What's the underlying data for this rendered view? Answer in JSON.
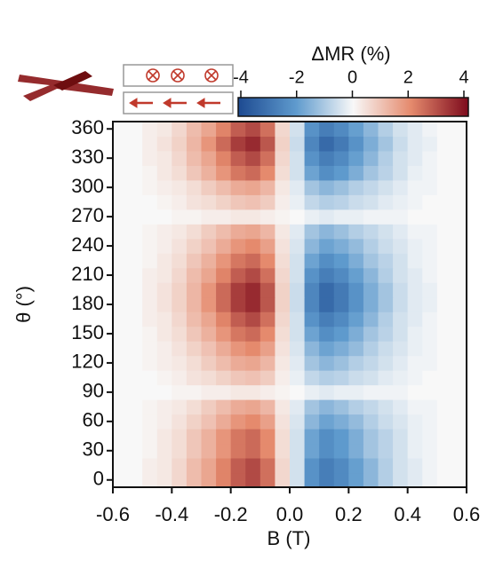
{
  "chart_data": {
    "type": "heatmap",
    "xlabel": "B (T)",
    "ylabel": "θ (°)",
    "x": [
      -0.575,
      -0.525,
      -0.475,
      -0.425,
      -0.375,
      -0.325,
      -0.275,
      -0.225,
      -0.175,
      -0.125,
      -0.075,
      -0.025,
      0.025,
      0.075,
      0.125,
      0.175,
      0.225,
      0.275,
      0.325,
      0.375,
      0.425,
      0.475,
      0.525,
      0.575
    ],
    "y": [
      0,
      15,
      30,
      45,
      60,
      75,
      90,
      105,
      120,
      135,
      150,
      165,
      180,
      195,
      210,
      225,
      240,
      255,
      270,
      285,
      300,
      315,
      330,
      345,
      360
    ],
    "z": [
      [
        0,
        0,
        0.2,
        0.3,
        0.6,
        1.1,
        1.5,
        2.1,
        2.7,
        3,
        2.4,
        0.6,
        -0.5,
        -2.2,
        -2.7,
        -2.4,
        -1.9,
        -1.4,
        -0.9,
        -0.5,
        -0.3,
        -0.1,
        0,
        0
      ],
      [
        0,
        0,
        0.2,
        0.3,
        0.6,
        1.1,
        1.5,
        2.1,
        2.7,
        3,
        2.4,
        0.6,
        -0.5,
        -2.2,
        -2.7,
        -2.4,
        -1.9,
        -1.4,
        -0.9,
        -0.5,
        -0.3,
        -0.1,
        0,
        0
      ],
      [
        0,
        0,
        0.1,
        0.3,
        0.5,
        0.9,
        1.3,
        1.8,
        2.3,
        2.5,
        2,
        0.5,
        -0.5,
        -1.8,
        -2.3,
        -2,
        -1.6,
        -1.1,
        -0.8,
        -0.5,
        -0.2,
        -0.1,
        0,
        0
      ],
      [
        0,
        0,
        0.1,
        0.3,
        0.5,
        0.9,
        1.3,
        1.8,
        2.3,
        2.5,
        2,
        0.5,
        -0.5,
        -1.8,
        -2.3,
        -2,
        -1.6,
        -1.1,
        -0.8,
        -0.5,
        -0.2,
        -0.1,
        0,
        0
      ],
      [
        0,
        0,
        0.1,
        0.2,
        0.4,
        0.7,
        1,
        1.4,
        1.8,
        2,
        1.6,
        0.4,
        -0.4,
        -1.4,
        -1.8,
        -1.6,
        -1.3,
        -0.9,
        -0.6,
        -0.4,
        -0.2,
        -0.1,
        0,
        0
      ],
      [
        0,
        0,
        0.1,
        0.2,
        0.3,
        0.5,
        0.8,
        1.1,
        1.4,
        1.5,
        1.2,
        0.3,
        -0.3,
        -1.1,
        -1.4,
        -1.2,
        -0.9,
        -0.7,
        -0.5,
        -0.3,
        -0.1,
        -0.1,
        0,
        0
      ],
      [
        0,
        0,
        0,
        0,
        0.1,
        0.1,
        0.2,
        0.2,
        0.3,
        0.3,
        0.2,
        0.1,
        0,
        -0.2,
        -0.3,
        -0.2,
        -0.2,
        -0.1,
        -0.1,
        -0.1,
        0,
        0,
        0,
        0
      ],
      [
        0,
        0,
        0,
        0.1,
        0.2,
        0.4,
        0.5,
        0.7,
        0.9,
        1,
        0.8,
        0.2,
        -0.2,
        -0.7,
        -0.9,
        -0.8,
        -0.6,
        -0.5,
        -0.3,
        -0.2,
        -0.1,
        0,
        0,
        0
      ],
      [
        0,
        0,
        0.1,
        0.2,
        0.3,
        0.5,
        0.8,
        1.1,
        1.4,
        1.5,
        1.2,
        0.3,
        -0.3,
        -1.1,
        -1.4,
        -1.2,
        -0.9,
        -0.7,
        -0.5,
        -0.3,
        -0.1,
        -0.1,
        0,
        0
      ],
      [
        0,
        0,
        0.1,
        0.2,
        0.4,
        0.7,
        1,
        1.4,
        1.8,
        2,
        1.6,
        0.4,
        -0.4,
        -1.4,
        -1.8,
        -1.6,
        -1.3,
        -0.9,
        -0.6,
        -0.4,
        -0.2,
        -0.1,
        0,
        0
      ],
      [
        0,
        0,
        0.1,
        0.3,
        0.5,
        0.9,
        1.3,
        1.8,
        2.3,
        2.5,
        2,
        0.5,
        -0.5,
        -1.8,
        -2.3,
        -2,
        -1.6,
        -1.1,
        -0.8,
        -0.5,
        -0.2,
        -0.1,
        0,
        0
      ],
      [
        0,
        0,
        0.2,
        0.3,
        0.6,
        1.1,
        1.5,
        2.1,
        2.7,
        3,
        2.4,
        0.6,
        -0.5,
        -2.2,
        -2.7,
        -2.4,
        -1.9,
        -1.4,
        -0.9,
        -0.5,
        -0.3,
        -0.1,
        0,
        0
      ],
      [
        0,
        0,
        0.2,
        0.4,
        0.7,
        1.2,
        1.8,
        2.5,
        3.2,
        3.5,
        2.8,
        0.7,
        -0.6,
        -2.5,
        -3.2,
        -2.8,
        -2.2,
        -1.6,
        -1.1,
        -0.6,
        -0.3,
        -0.2,
        0,
        0
      ],
      [
        0,
        0,
        0.2,
        0.4,
        0.7,
        1.2,
        1.8,
        2.5,
        3.2,
        3.5,
        2.8,
        0.7,
        -0.6,
        -2.5,
        -3.2,
        -2.8,
        -2.2,
        -1.6,
        -1.1,
        -0.6,
        -0.3,
        -0.2,
        0,
        0
      ],
      [
        0,
        0,
        0.2,
        0.3,
        0.6,
        1.1,
        1.5,
        2.1,
        2.7,
        3,
        2.4,
        0.6,
        -0.5,
        -2.2,
        -2.7,
        -2.4,
        -1.9,
        -1.4,
        -0.9,
        -0.5,
        -0.3,
        -0.1,
        0,
        0
      ],
      [
        0,
        0,
        0.1,
        0.3,
        0.5,
        0.9,
        1.3,
        1.8,
        2.3,
        2.5,
        2,
        0.5,
        -0.5,
        -1.8,
        -2.3,
        -2,
        -1.6,
        -1.1,
        -0.8,
        -0.5,
        -0.2,
        -0.1,
        0,
        0
      ],
      [
        0,
        0,
        0.1,
        0.2,
        0.4,
        0.7,
        1,
        1.4,
        1.8,
        2,
        1.6,
        0.4,
        -0.4,
        -1.4,
        -1.8,
        -1.6,
        -1.3,
        -0.9,
        -0.6,
        -0.4,
        -0.2,
        -0.1,
        0,
        0
      ],
      [
        0,
        0,
        0.1,
        0.2,
        0.3,
        0.5,
        0.8,
        1.1,
        1.4,
        1.5,
        1.2,
        0.3,
        -0.3,
        -1.1,
        -1.4,
        -1.2,
        -0.9,
        -0.7,
        -0.5,
        -0.3,
        -0.1,
        -0.1,
        0,
        0
      ],
      [
        0,
        0,
        0,
        0,
        0.1,
        0.1,
        0.2,
        0.2,
        0.3,
        0.3,
        0.2,
        0.1,
        0,
        -0.2,
        -0.3,
        -0.2,
        -0.2,
        -0.1,
        -0.1,
        -0.1,
        0,
        0,
        0,
        0
      ],
      [
        0,
        0,
        0,
        0.1,
        0.2,
        0.4,
        0.5,
        0.7,
        0.9,
        1,
        0.8,
        0.2,
        -0.2,
        -0.7,
        -0.9,
        -0.8,
        -0.6,
        -0.5,
        -0.3,
        -0.2,
        -0.1,
        0,
        0,
        0
      ],
      [
        0,
        0,
        0.1,
        0.2,
        0.3,
        0.5,
        0.8,
        1.1,
        1.4,
        1.5,
        1.2,
        0.3,
        -0.3,
        -1.1,
        -1.4,
        -1.2,
        -0.9,
        -0.7,
        -0.5,
        -0.3,
        -0.1,
        -0.1,
        0,
        0
      ],
      [
        0,
        0,
        0.1,
        0.3,
        0.5,
        0.9,
        1.3,
        1.8,
        2.3,
        2.5,
        2,
        0.5,
        -0.5,
        -1.8,
        -2.3,
        -2,
        -1.6,
        -1.1,
        -0.8,
        -0.5,
        -0.2,
        -0.1,
        0,
        0
      ],
      [
        0,
        0,
        0.2,
        0.3,
        0.6,
        1.1,
        1.5,
        2.1,
        2.7,
        3,
        2.4,
        0.6,
        -0.5,
        -2.2,
        -2.7,
        -2.4,
        -1.9,
        -1.4,
        -0.9,
        -0.5,
        -0.3,
        -0.1,
        0,
        0
      ],
      [
        0,
        0,
        0.2,
        0.4,
        0.7,
        1.2,
        1.8,
        2.5,
        3.2,
        3.5,
        2.8,
        0.7,
        -0.6,
        -2.5,
        -3.2,
        -2.8,
        -2.2,
        -1.6,
        -1.1,
        -0.6,
        -0.3,
        -0.2,
        0,
        0
      ],
      [
        0,
        0,
        0.2,
        0.3,
        0.6,
        1.1,
        1.5,
        2.1,
        2.7,
        3,
        2.4,
        0.6,
        -0.5,
        -2.2,
        -2.7,
        -2.4,
        -1.9,
        -1.4,
        -0.9,
        -0.5,
        -0.3,
        -0.1,
        0,
        0
      ]
    ],
    "xlim": [
      -0.6,
      0.6
    ],
    "xticks": [
      -0.6,
      -0.4,
      -0.2,
      {
        "value": 0,
        "label": "0.0"
      },
      0.2,
      0.4,
      0.6
    ],
    "ylim": [
      -7.5,
      367.5
    ],
    "yticks": [
      0,
      30,
      60,
      90,
      120,
      150,
      180,
      210,
      240,
      270,
      300,
      330,
      360
    ],
    "colorbar": {
      "label": "ΔMR (%)",
      "lim": [
        -4,
        4
      ],
      "ticks": [
        -4,
        -2,
        0,
        2,
        4
      ],
      "colors": [
        "#1d4a91",
        "#5e9acd",
        "#f8f8f8",
        "#e58a6d",
        "#7d0a1c"
      ]
    }
  }
}
